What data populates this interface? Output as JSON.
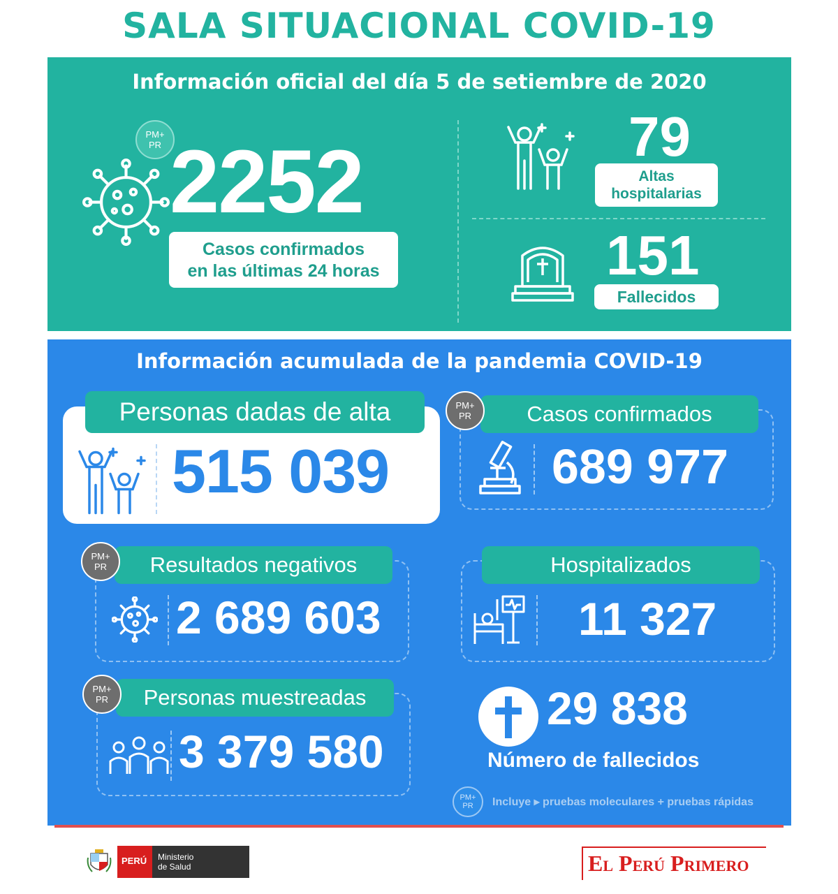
{
  "title": "SALA SITUACIONAL COVID-19",
  "daily": {
    "heading": "Información oficial del día 5 de setiembre de 2020",
    "badge_line1": "PM+",
    "badge_line2": "PR",
    "confirmed_value": "2252",
    "confirmed_label_1": "Casos confirmados",
    "confirmed_label_2": "en las últimas 24 horas",
    "discharges_value": "79",
    "discharges_label_1": "Altas",
    "discharges_label_2": "hospitalarias",
    "deaths_value": "151",
    "deaths_label": "Fallecidos"
  },
  "cumulative": {
    "heading": "Información acumulada de la pandemia COVID-19",
    "badge_line1": "PM+",
    "badge_line2": "PR",
    "discharged_label": "Personas dadas de alta",
    "discharged_value": "515 039",
    "confirmed_label": "Casos confirmados",
    "confirmed_value": "689 977",
    "negative_label": "Resultados negativos",
    "negative_value": "2 689 603",
    "hospitalized_label": "Hospitalizados",
    "hospitalized_value": "11 327",
    "sampled_label": "Personas muestreadas",
    "sampled_value": "3 379 580",
    "deaths_value": "29 838",
    "deaths_label": "Número de fallecidos",
    "note": "Incluye ▸ pruebas moleculares +  pruebas rápidas"
  },
  "footer": {
    "country": "PERÚ",
    "ministry_1": "Ministerio",
    "ministry_2": "de Salud",
    "slogan": "El Perú Primero"
  },
  "colors": {
    "teal": "#22b3a0",
    "blue": "#2b88e8",
    "red": "#d81e1e"
  }
}
